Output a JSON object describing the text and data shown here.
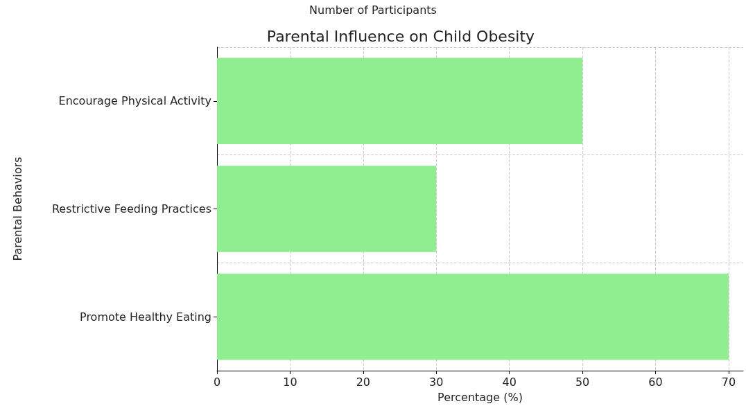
{
  "chart_data": {
    "type": "bar",
    "orientation": "horizontal",
    "title": "Parental Influence on Child Obesity",
    "xlabel": "Percentage (%)",
    "ylabel": "Parental Behaviors",
    "annotations": [
      "Number of Participants"
    ],
    "categories": [
      "Encourage Physical Activity",
      "Restrictive Feeding Practices",
      "Promote Healthy Eating"
    ],
    "values": [
      50,
      30,
      70
    ],
    "color": "#90ee90",
    "xlim": [
      0,
      72
    ],
    "xticks": [
      0,
      10,
      20,
      30,
      40,
      50,
      60,
      70
    ],
    "grid": true,
    "line_style": "dashed"
  }
}
